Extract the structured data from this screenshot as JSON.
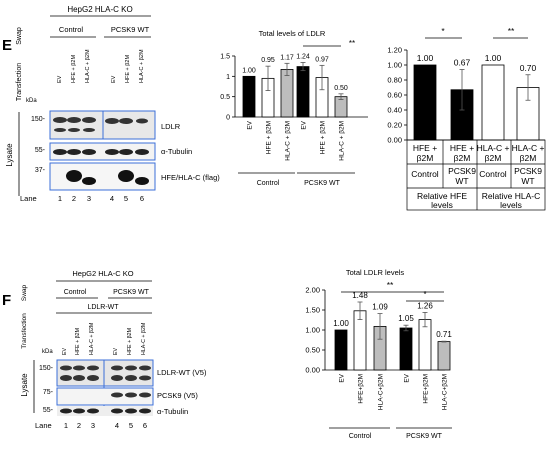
{
  "panelE": {
    "letter": "E",
    "header": "HepG2 HLA-C KO",
    "swap_label": "Swap",
    "transfection_label": "Transfection",
    "groups": [
      "Control",
      "PCSK9 WT"
    ],
    "lanes_transfection": [
      "EV",
      "HFE + β2M",
      "HLA-C + β2M",
      "EV",
      "HFE + β2M",
      "HLA-C + β2M"
    ],
    "kda_label": "kDa",
    "mw_markers": [
      "150-",
      "55-",
      "37-"
    ],
    "blot_labels": [
      "LDLR",
      "α-Tubulin",
      "HFE/HLA-C (flag)"
    ],
    "lysate_label": "Lysate",
    "lane_label": "Lane",
    "lane_numbers": [
      "1",
      "2",
      "3",
      "4",
      "5",
      "6"
    ]
  },
  "panelF": {
    "letter": "F",
    "header": "HepG2 HLA-C KO",
    "swap_label": "Swap",
    "transfection_label": "Transfection",
    "groups": [
      "Control",
      "PCSK9 WT"
    ],
    "ldlr_header": "LDLR-WT",
    "lanes_transfection": [
      "EV",
      "HFE + β2M",
      "HLA-C + β2M",
      "EV",
      "HFE + β2M",
      "HLA-C + β2M"
    ],
    "kda_label": "kDa",
    "mw_markers": [
      "150-",
      "75-",
      "55-"
    ],
    "blot_labels": [
      "LDLR-WT (V5)",
      "PCSK9 (V5)",
      "α-Tubulin"
    ],
    "lysate_label": "Lysate",
    "lane_label": "Lane",
    "lane_numbers": [
      "1",
      "2",
      "3",
      "4",
      "5",
      "6"
    ]
  },
  "colors": {
    "black": "#000000",
    "white": "#ffffff",
    "gray": "#bdbdbd",
    "frame": "#3b6fd8"
  },
  "chart_data": [
    {
      "type": "bar",
      "title": "Total levels of LDLR",
      "categories": [
        "EV",
        "HFE + β2M",
        "HLA-C + β2M",
        "EV",
        "HFE + β2M",
        "HLA-C + β2M"
      ],
      "values": [
        1.0,
        0.95,
        1.17,
        1.24,
        0.97,
        0.5
      ],
      "value_labels": [
        "1.00",
        "0.95",
        "1.17",
        "1.24",
        "0.97",
        "0.50"
      ],
      "errors": [
        0,
        0.3,
        0.15,
        0.1,
        0.3,
        0.07
      ],
      "fills": [
        "black",
        "white",
        "gray",
        "black",
        "white",
        "gray"
      ],
      "groups": [
        "Control",
        "PCSK9 WT"
      ],
      "ylim": [
        0,
        1.5
      ],
      "yticks": [
        "0",
        "0.5",
        "1",
        "1.5"
      ],
      "significance": "**"
    },
    {
      "type": "bar",
      "categories": [
        "HFE + β2M",
        "HFE + β2M",
        "HLA-C + β2M",
        "HLA-C + β2M"
      ],
      "values": [
        1.0,
        0.67,
        1.0,
        0.7
      ],
      "value_labels": [
        "1.00",
        "0.67",
        "1.00",
        "0.70"
      ],
      "errors": [
        0,
        0.27,
        0,
        0.17
      ],
      "fills": [
        "black",
        "black",
        "white",
        "white"
      ],
      "conditions": [
        "Control",
        "PCSK9 WT",
        "Control",
        "PCSK9 WT"
      ],
      "groups": [
        "Relative HFE levels",
        "Relative HLA-C levels"
      ],
      "ylim": [
        0,
        1.2
      ],
      "yticks": [
        "0.00",
        "0.20",
        "0.40",
        "0.60",
        "0.80",
        "1.00",
        "1.20"
      ],
      "significance": [
        "*",
        "**"
      ]
    },
    {
      "type": "bar",
      "title": "Total LDLR levels",
      "categories": [
        "EV",
        "HFE+β2M",
        "HLA-C+β2M",
        "EV",
        "HFE+β2M",
        "HLA-C+β2M"
      ],
      "values": [
        1.0,
        1.48,
        1.09,
        1.05,
        1.26,
        0.71
      ],
      "value_labels": [
        "1.00",
        "1.48",
        "1.09",
        "1.05",
        "1.26",
        "0.71"
      ],
      "errors": [
        0,
        0.22,
        0.32,
        0.07,
        0.18,
        0.01
      ],
      "fills": [
        "black",
        "white",
        "gray",
        "black",
        "white",
        "gray"
      ],
      "groups": [
        "Control",
        "PCSK9 WT"
      ],
      "ylim": [
        0,
        2
      ],
      "yticks": [
        "0.00",
        "0.50",
        "1.00",
        "1.50",
        "2.00"
      ],
      "significance": [
        "**",
        "*"
      ]
    }
  ]
}
